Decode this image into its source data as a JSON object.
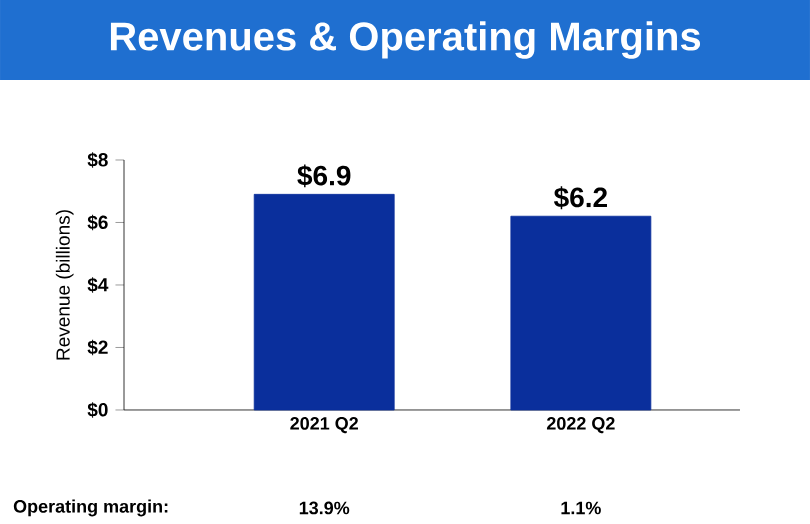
{
  "chart_data": {
    "type": "bar",
    "title": "Revenues & Operating Margins",
    "ylabel": "Revenue (billions)",
    "categories": [
      "2021 Q2",
      "2022 Q2"
    ],
    "values": [
      6.9,
      6.2
    ],
    "value_labels": [
      "$6.9",
      "$6.2"
    ],
    "color": "#0a2f9c",
    "ylim": [
      0,
      8
    ],
    "yticks": [
      {
        "value": 0,
        "label": "$0"
      },
      {
        "value": 2,
        "label": "$2"
      },
      {
        "value": 4,
        "label": "$4"
      },
      {
        "value": 6,
        "label": "$6"
      },
      {
        "value": 8,
        "label": "$8"
      }
    ],
    "annotations": [
      "Operating margin:",
      "13.9%",
      "1.1%"
    ]
  }
}
